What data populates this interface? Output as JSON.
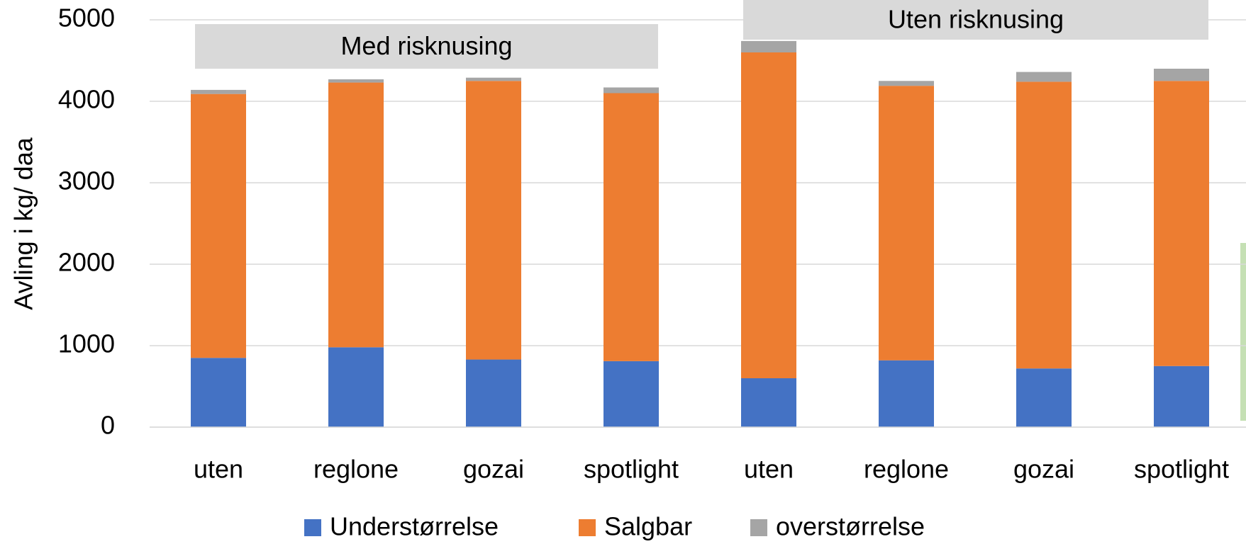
{
  "chart_data": {
    "type": "stacked_bar",
    "y_label": "Avling i kg/ daa",
    "categories": [
      "uten",
      "reglone",
      "gozai",
      "spotlight",
      "uten",
      "reglone",
      "gozai",
      "spotlight"
    ],
    "series": [
      {
        "name": "Understørrelse",
        "color": "#4472c4",
        "values": [
          850,
          980,
          830,
          810,
          600,
          820,
          720,
          750
        ]
      },
      {
        "name": "Salgbar",
        "color": "#ed7d31",
        "values": [
          3240,
          3250,
          3420,
          3290,
          4000,
          3370,
          3520,
          3500
        ]
      },
      {
        "name": "overstørrelse",
        "color": "#a5a5a5",
        "values": [
          50,
          40,
          40,
          70,
          140,
          60,
          120,
          150
        ]
      }
    ],
    "annotations": [
      "Med risknusing",
      "Uten risknusing"
    ],
    "ylim": [
      0,
      5000
    ],
    "yticks": [
      0,
      1000,
      2000,
      3000,
      4000,
      5000
    ],
    "grid": true
  }
}
